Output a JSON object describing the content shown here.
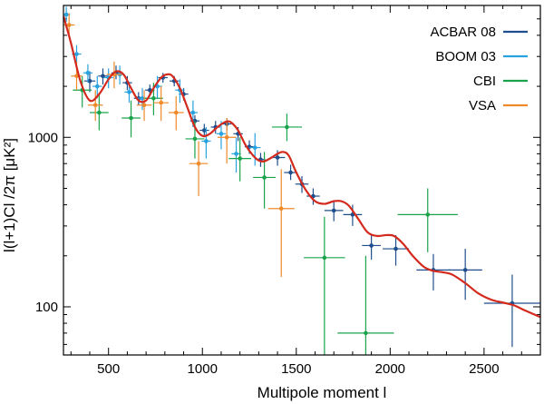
{
  "chart_data": {
    "type": "scatter",
    "title": "",
    "xlabel": "Multipole moment  l",
    "ylabel": "l(l+1)Cl /2π [μK²]",
    "xscale": "linear",
    "yscale": "log",
    "xlim": [
      260,
      2800
    ],
    "ylim": [
      52,
      6000
    ],
    "xticks": [
      500,
      1000,
      1500,
      2000,
      2500
    ],
    "xtick_labels": [
      "500",
      "1000",
      "1500",
      "2000",
      "2500"
    ],
    "yticks": [
      100,
      1000
    ],
    "ytick_labels": [
      "100",
      "1000"
    ],
    "legend_position": "top-right",
    "series": [
      {
        "name": "ACBAR 08",
        "color": "#1f4e8c",
        "points": [
          {
            "x": 400,
            "y": 2150,
            "xerr": 30,
            "ylo": 1850,
            "yhi": 2450
          },
          {
            "x": 470,
            "y": 2300,
            "xerr": 25,
            "ylo": 2050,
            "yhi": 2550
          },
          {
            "x": 540,
            "y": 2400,
            "xerr": 25,
            "ylo": 2200,
            "yhi": 2650
          },
          {
            "x": 600,
            "y": 2100,
            "xerr": 25,
            "ylo": 1900,
            "yhi": 2300
          },
          {
            "x": 660,
            "y": 1700,
            "xerr": 25,
            "ylo": 1550,
            "yhi": 1850
          },
          {
            "x": 720,
            "y": 1900,
            "xerr": 25,
            "ylo": 1750,
            "yhi": 2050
          },
          {
            "x": 790,
            "y": 2250,
            "xerr": 25,
            "ylo": 2100,
            "yhi": 2400
          },
          {
            "x": 850,
            "y": 2150,
            "xerr": 25,
            "ylo": 2000,
            "yhi": 2300
          },
          {
            "x": 900,
            "y": 1800,
            "xerr": 25,
            "ylo": 1650,
            "yhi": 1950
          },
          {
            "x": 960,
            "y": 1250,
            "xerr": 25,
            "ylo": 1150,
            "yhi": 1350
          },
          {
            "x": 1010,
            "y": 1100,
            "xerr": 25,
            "ylo": 1000,
            "yhi": 1200
          },
          {
            "x": 1070,
            "y": 1150,
            "xerr": 25,
            "ylo": 1050,
            "yhi": 1250
          },
          {
            "x": 1130,
            "y": 1200,
            "xerr": 25,
            "ylo": 1100,
            "yhi": 1300
          },
          {
            "x": 1190,
            "y": 1050,
            "xerr": 25,
            "ylo": 950,
            "yhi": 1150
          },
          {
            "x": 1250,
            "y": 880,
            "xerr": 25,
            "ylo": 800,
            "yhi": 960
          },
          {
            "x": 1310,
            "y": 740,
            "xerr": 25,
            "ylo": 670,
            "yhi": 810
          },
          {
            "x": 1400,
            "y": 760,
            "xerr": 40,
            "ylo": 680,
            "yhi": 840
          },
          {
            "x": 1470,
            "y": 620,
            "xerr": 35,
            "ylo": 560,
            "yhi": 690
          },
          {
            "x": 1530,
            "y": 530,
            "xerr": 35,
            "ylo": 470,
            "yhi": 590
          },
          {
            "x": 1590,
            "y": 450,
            "xerr": 35,
            "ylo": 400,
            "yhi": 500
          },
          {
            "x": 1700,
            "y": 370,
            "xerr": 50,
            "ylo": 320,
            "yhi": 420
          },
          {
            "x": 1800,
            "y": 350,
            "xerr": 50,
            "ylo": 300,
            "yhi": 400
          },
          {
            "x": 1900,
            "y": 230,
            "xerr": 50,
            "ylo": 190,
            "yhi": 270
          },
          {
            "x": 2030,
            "y": 220,
            "xerr": 70,
            "ylo": 175,
            "yhi": 265
          },
          {
            "x": 2230,
            "y": 165,
            "xerr": 90,
            "ylo": 125,
            "yhi": 205
          },
          {
            "x": 2400,
            "y": 165,
            "xerr": 90,
            "ylo": 110,
            "yhi": 220
          },
          {
            "x": 2650,
            "y": 105,
            "xerr": 150,
            "ylo": 58,
            "yhi": 155
          }
        ]
      },
      {
        "name": "BOOM 03",
        "color": "#29a3e0",
        "points": [
          {
            "x": 275,
            "y": 5300,
            "xerr": 20,
            "ylo": 4800,
            "yhi": 5900
          },
          {
            "x": 330,
            "y": 3100,
            "xerr": 25,
            "ylo": 2700,
            "yhi": 3500
          },
          {
            "x": 390,
            "y": 2400,
            "xerr": 25,
            "ylo": 2100,
            "yhi": 2700
          },
          {
            "x": 440,
            "y": 2000,
            "xerr": 25,
            "ylo": 1700,
            "yhi": 2300
          },
          {
            "x": 500,
            "y": 2250,
            "xerr": 25,
            "ylo": 1950,
            "yhi": 2550
          },
          {
            "x": 560,
            "y": 2350,
            "xerr": 25,
            "ylo": 2050,
            "yhi": 2650
          },
          {
            "x": 610,
            "y": 1850,
            "xerr": 25,
            "ylo": 1600,
            "yhi": 2100
          },
          {
            "x": 680,
            "y": 1700,
            "xerr": 25,
            "ylo": 1450,
            "yhi": 1950
          },
          {
            "x": 760,
            "y": 2000,
            "xerr": 25,
            "ylo": 1700,
            "yhi": 2300
          },
          {
            "x": 880,
            "y": 1900,
            "xerr": 25,
            "ylo": 1600,
            "yhi": 2200
          },
          {
            "x": 950,
            "y": 1400,
            "xerr": 25,
            "ylo": 1150,
            "yhi": 1650
          },
          {
            "x": 1020,
            "y": 950,
            "xerr": 25,
            "ylo": 750,
            "yhi": 1150
          },
          {
            "x": 1100,
            "y": 1050,
            "xerr": 25,
            "ylo": 850,
            "yhi": 1250
          },
          {
            "x": 1180,
            "y": 800,
            "xerr": 25,
            "ylo": 620,
            "yhi": 1000
          },
          {
            "x": 1280,
            "y": 870,
            "xerr": 30,
            "ylo": 680,
            "yhi": 1060
          }
        ]
      },
      {
        "name": "CBI",
        "color": "#1aa34a",
        "points": [
          {
            "x": 360,
            "y": 1900,
            "xerr": 50,
            "ylo": 1500,
            "yhi": 2300
          },
          {
            "x": 450,
            "y": 1400,
            "xerr": 50,
            "ylo": 1100,
            "yhi": 1800
          },
          {
            "x": 620,
            "y": 1300,
            "xerr": 50,
            "ylo": 1000,
            "yhi": 1650
          },
          {
            "x": 740,
            "y": 1700,
            "xerr": 50,
            "ylo": 1350,
            "yhi": 2100
          },
          {
            "x": 960,
            "y": 980,
            "xerr": 50,
            "ylo": 750,
            "yhi": 1250
          },
          {
            "x": 1200,
            "y": 750,
            "xerr": 60,
            "ylo": 550,
            "yhi": 1000
          },
          {
            "x": 1330,
            "y": 580,
            "xerr": 60,
            "ylo": 380,
            "yhi": 820
          },
          {
            "x": 1450,
            "y": 1150,
            "xerr": 80,
            "ylo": 950,
            "yhi": 1380
          },
          {
            "x": 1650,
            "y": 195,
            "xerr": 110,
            "ylo": 52,
            "yhi": 340
          },
          {
            "x": 1870,
            "y": 70,
            "xerr": 150,
            "ylo": 52,
            "yhi": 200
          },
          {
            "x": 2200,
            "y": 350,
            "xerr": 160,
            "ylo": 210,
            "yhi": 500
          }
        ]
      },
      {
        "name": "VSA",
        "color": "#ef8a2a",
        "points": [
          {
            "x": 290,
            "y": 4600,
            "xerr": 30,
            "ylo": 3900,
            "yhi": 5400
          },
          {
            "x": 330,
            "y": 2300,
            "xerr": 30,
            "ylo": 1900,
            "yhi": 2800
          },
          {
            "x": 430,
            "y": 1550,
            "xerr": 40,
            "ylo": 1250,
            "yhi": 1900
          },
          {
            "x": 530,
            "y": 2350,
            "xerr": 40,
            "ylo": 1950,
            "yhi": 2800
          },
          {
            "x": 690,
            "y": 1550,
            "xerr": 40,
            "ylo": 1250,
            "yhi": 1900
          },
          {
            "x": 780,
            "y": 1600,
            "xerr": 40,
            "ylo": 1250,
            "yhi": 2000
          },
          {
            "x": 860,
            "y": 1400,
            "xerr": 40,
            "ylo": 1100,
            "yhi": 1750
          },
          {
            "x": 980,
            "y": 700,
            "xerr": 50,
            "ylo": 450,
            "yhi": 950
          },
          {
            "x": 1130,
            "y": 1000,
            "xerr": 50,
            "ylo": 700,
            "yhi": 1300
          },
          {
            "x": 1420,
            "y": 380,
            "xerr": 70,
            "ylo": 150,
            "yhi": 650
          }
        ]
      }
    ],
    "model_curve": {
      "color": "#d42a1e",
      "points": [
        [
          260,
          5200
        ],
        [
          300,
          3600
        ],
        [
          350,
          2150
        ],
        [
          400,
          1650
        ],
        [
          450,
          1800
        ],
        [
          500,
          2200
        ],
        [
          540,
          2450
        ],
        [
          580,
          2350
        ],
        [
          620,
          1950
        ],
        [
          660,
          1650
        ],
        [
          700,
          1650
        ],
        [
          740,
          1950
        ],
        [
          780,
          2250
        ],
        [
          810,
          2350
        ],
        [
          840,
          2300
        ],
        [
          880,
          1950
        ],
        [
          920,
          1500
        ],
        [
          960,
          1150
        ],
        [
          1000,
          1020
        ],
        [
          1040,
          1050
        ],
        [
          1080,
          1150
        ],
        [
          1120,
          1230
        ],
        [
          1150,
          1230
        ],
        [
          1190,
          1100
        ],
        [
          1230,
          900
        ],
        [
          1280,
          760
        ],
        [
          1320,
          720
        ],
        [
          1360,
          750
        ],
        [
          1400,
          800
        ],
        [
          1430,
          820
        ],
        [
          1460,
          780
        ],
        [
          1500,
          620
        ],
        [
          1550,
          490
        ],
        [
          1600,
          420
        ],
        [
          1650,
          405
        ],
        [
          1700,
          420
        ],
        [
          1740,
          420
        ],
        [
          1780,
          395
        ],
        [
          1830,
          330
        ],
        [
          1880,
          275
        ],
        [
          1930,
          262
        ],
        [
          1980,
          265
        ],
        [
          2020,
          262
        ],
        [
          2070,
          235
        ],
        [
          2120,
          200
        ],
        [
          2180,
          172
        ],
        [
          2230,
          163
        ],
        [
          2280,
          160
        ],
        [
          2330,
          155
        ],
        [
          2400,
          138
        ],
        [
          2470,
          120
        ],
        [
          2540,
          110
        ],
        [
          2600,
          106
        ],
        [
          2660,
          102
        ],
        [
          2720,
          95
        ],
        [
          2800,
          87
        ]
      ]
    }
  }
}
